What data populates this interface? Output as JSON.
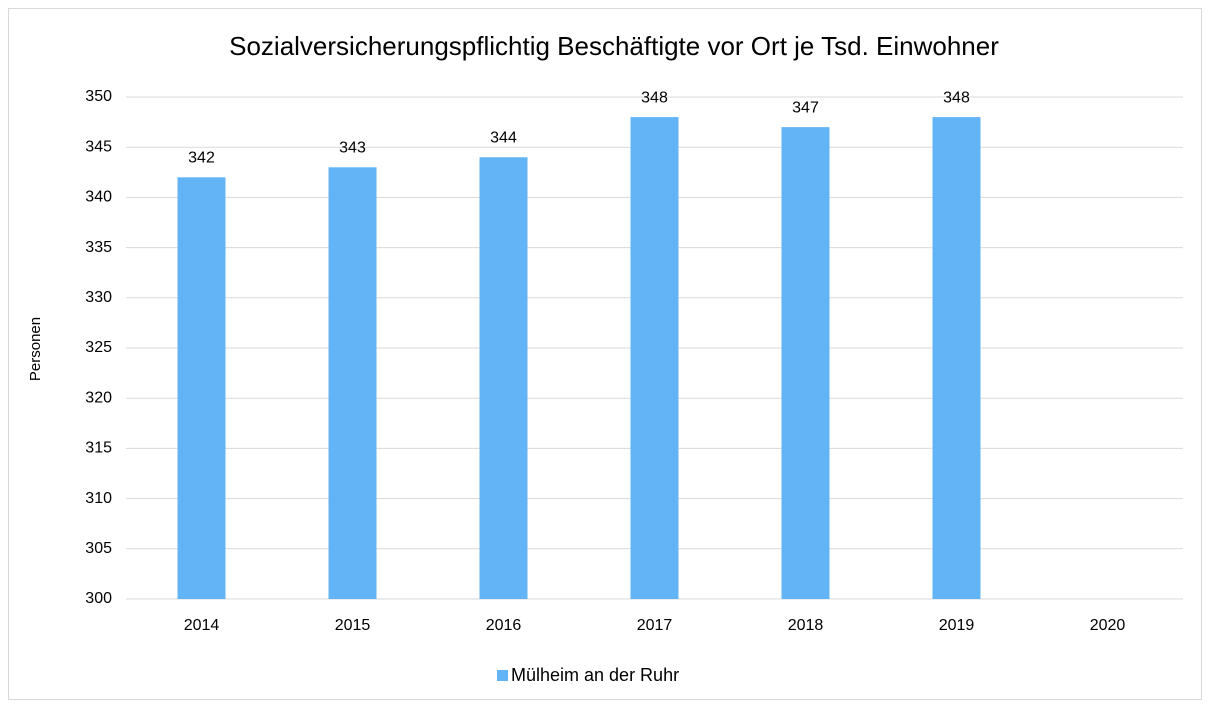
{
  "chart_data": {
    "type": "bar",
    "title": "Sozialversicherungspflichtig Beschäftigte vor Ort je Tsd. Einwohner",
    "y_label": "Personen",
    "categories": [
      "2014",
      "2015",
      "2016",
      "2017",
      "2018",
      "2019",
      "2020"
    ],
    "series": [
      {
        "name": "Mülheim an der Ruhr",
        "color": "#63b4f6",
        "values": [
          342,
          343,
          344,
          348,
          347,
          348,
          null
        ]
      }
    ],
    "ylim": [
      300,
      350
    ],
    "yticks": [
      300,
      305,
      310,
      315,
      320,
      325,
      330,
      335,
      340,
      345,
      350
    ],
    "grid": true,
    "legend": "bottom",
    "data_labels": true
  }
}
